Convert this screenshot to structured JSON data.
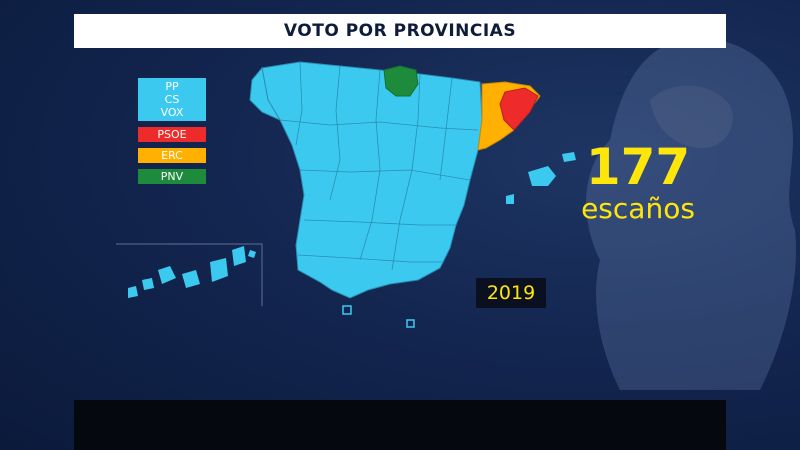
{
  "title": "VOTO POR PROVINCIAS",
  "legend": [
    {
      "labels": [
        "PP",
        "CS",
        "VOX"
      ],
      "color": "#3cc9f0"
    },
    {
      "labels": [
        "PSOE"
      ],
      "color": "#ee2b2b"
    },
    {
      "labels": [
        "ERC"
      ],
      "color": "#ffb000"
    },
    {
      "labels": [
        "PNV"
      ],
      "color": "#1e8a3c"
    }
  ],
  "seats": {
    "number": "177",
    "label": "escaños"
  },
  "year": "2019",
  "colors": {
    "pp_cs_vox": "#3cc9f0",
    "psoe": "#ee2b2b",
    "erc": "#ffb000",
    "pnv": "#1e8a3c",
    "highlight": "#ffe60a",
    "background": "#132650"
  }
}
